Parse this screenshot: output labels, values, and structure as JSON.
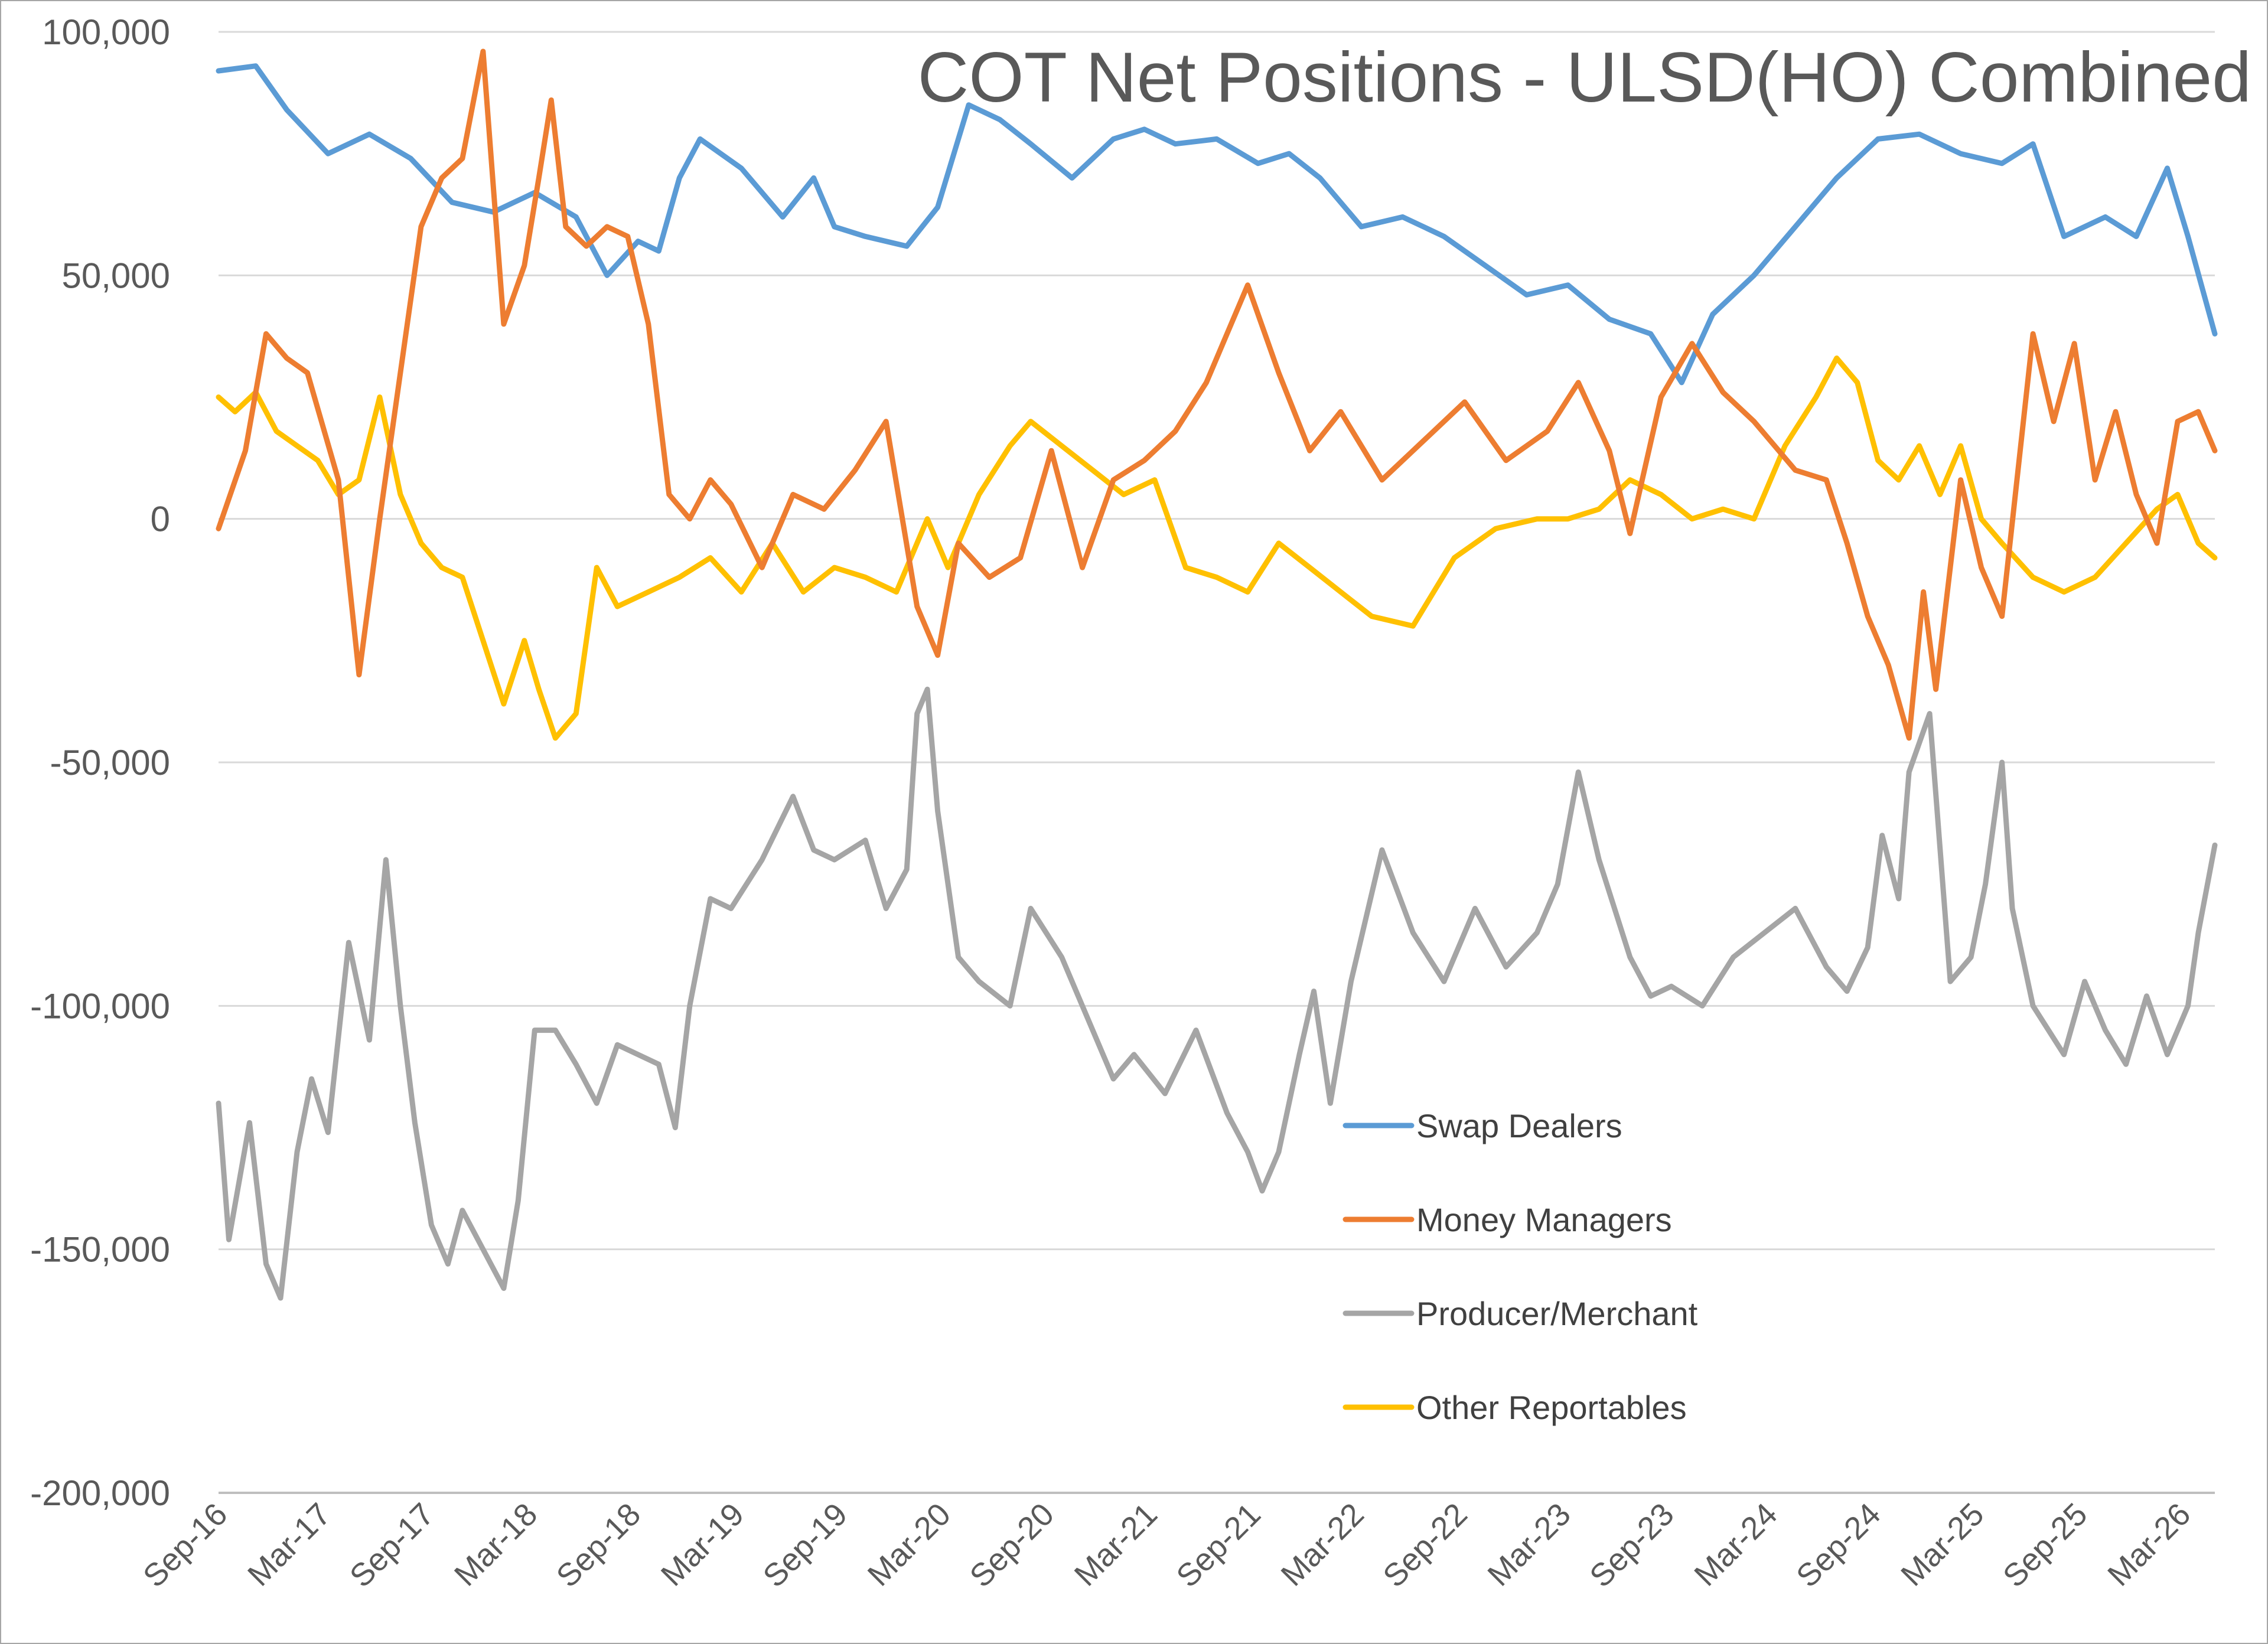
{
  "chart_data": {
    "type": "line",
    "title": "COT Net Positions - ULSD(HO) Combined",
    "xlabel": "",
    "ylabel": "",
    "ylim": [
      -200000,
      100000
    ],
    "yticks": [
      100000,
      50000,
      0,
      -50000,
      -100000,
      -150000,
      -200000
    ],
    "ytick_labels": [
      "100,000",
      "50,000",
      "0",
      "-50,000",
      "-100,000",
      "-150,000",
      "-200,000"
    ],
    "x_start": 2016.67,
    "x_end": 2026.33,
    "xtick_labels": [
      "Sep-16",
      "Mar-17",
      "Sep-17",
      "Mar-18",
      "Sep-18",
      "Mar-19",
      "Sep-19",
      "Mar-20",
      "Sep-20",
      "Mar-21",
      "Sep-21",
      "Mar-22",
      "Sep-22",
      "Mar-23",
      "Sep-23",
      "Mar-24",
      "Sep-24",
      "Mar-25",
      "Sep-25",
      "Mar-26"
    ],
    "xtick_values": [
      2016.67,
      2017.17,
      2017.67,
      2018.17,
      2018.67,
      2019.17,
      2019.67,
      2020.17,
      2020.67,
      2021.17,
      2021.67,
      2022.17,
      2022.67,
      2023.17,
      2023.67,
      2024.17,
      2024.67,
      2025.17,
      2025.67,
      2026.17
    ],
    "grid": true,
    "legend_position": "lower-center",
    "series": [
      {
        "name": "Swap Dealers",
        "color": "#5b9bd5",
        "x": [
          2016.67,
          2016.85,
          2017.0,
          2017.2,
          2017.4,
          2017.6,
          2017.8,
          2018.0,
          2018.2,
          2018.4,
          2018.55,
          2018.7,
          2018.8,
          2018.9,
          2019.0,
          2019.2,
          2019.4,
          2019.55,
          2019.65,
          2019.8,
          2020.0,
          2020.15,
          2020.3,
          2020.45,
          2020.6,
          2020.8,
          2021.0,
          2021.15,
          2021.3,
          2021.5,
          2021.7,
          2021.85,
          2022.0,
          2022.2,
          2022.4,
          2022.6,
          2022.8,
          2023.0,
          2023.2,
          2023.4,
          2023.6,
          2023.75,
          2023.9,
          2024.1,
          2024.3,
          2024.5,
          2024.7,
          2024.9,
          2025.1,
          2025.3,
          2025.45,
          2025.6,
          2025.8,
          2025.95,
          2026.1,
          2026.2,
          2026.33
        ],
        "values": [
          92000,
          93000,
          84000,
          75000,
          79000,
          74000,
          65000,
          63000,
          67000,
          62000,
          50000,
          57000,
          55000,
          70000,
          78000,
          72000,
          62000,
          70000,
          60000,
          58000,
          56000,
          64000,
          85000,
          82000,
          77000,
          70000,
          78000,
          80000,
          77000,
          78000,
          73000,
          75000,
          70000,
          60000,
          62000,
          58000,
          52000,
          46000,
          48000,
          41000,
          38000,
          28000,
          42000,
          50000,
          60000,
          70000,
          78000,
          79000,
          75000,
          73000,
          77000,
          58000,
          62000,
          58000,
          72000,
          58000,
          38000
        ]
      },
      {
        "name": "Money Managers",
        "color": "#ed7d31",
        "x": [
          2016.67,
          2016.8,
          2016.9,
          2017.0,
          2017.1,
          2017.25,
          2017.35,
          2017.45,
          2017.55,
          2017.65,
          2017.75,
          2017.85,
          2017.95,
          2018.05,
          2018.15,
          2018.22,
          2018.28,
          2018.35,
          2018.45,
          2018.55,
          2018.65,
          2018.75,
          2018.85,
          2018.95,
          2019.05,
          2019.15,
          2019.3,
          2019.45,
          2019.6,
          2019.75,
          2019.9,
          2020.05,
          2020.15,
          2020.25,
          2020.4,
          2020.55,
          2020.7,
          2020.85,
          2021.0,
          2021.15,
          2021.3,
          2021.45,
          2021.55,
          2021.65,
          2021.8,
          2021.95,
          2022.1,
          2022.3,
          2022.5,
          2022.7,
          2022.9,
          2023.1,
          2023.25,
          2023.4,
          2023.5,
          2023.65,
          2023.8,
          2023.95,
          2024.1,
          2024.3,
          2024.45,
          2024.55,
          2024.65,
          2024.75,
          2024.85,
          2024.92,
          2024.98,
          2025.1,
          2025.2,
          2025.3,
          2025.45,
          2025.55,
          2025.65,
          2025.75,
          2025.85,
          2025.95,
          2026.05,
          2026.15,
          2026.25,
          2026.33
        ],
        "values": [
          -2000,
          14000,
          38000,
          33000,
          30000,
          8000,
          -32000,
          0,
          30000,
          60000,
          70000,
          74000,
          96000,
          40000,
          52000,
          70000,
          86000,
          60000,
          56000,
          60000,
          58000,
          40000,
          5000,
          0,
          8000,
          3000,
          -10000,
          5000,
          2000,
          10000,
          20000,
          -18000,
          -28000,
          -5000,
          -12000,
          -8000,
          14000,
          -10000,
          8000,
          12000,
          18000,
          28000,
          38000,
          48000,
          30000,
          14000,
          22000,
          8000,
          16000,
          24000,
          12000,
          18000,
          28000,
          14000,
          -3000,
          25000,
          36000,
          26000,
          20000,
          10000,
          8000,
          -5000,
          -20000,
          -30000,
          -45000,
          -15000,
          -35000,
          8000,
          -10000,
          -20000,
          38000,
          20000,
          36000,
          8000,
          22000,
          5000,
          -5000,
          20000,
          22000,
          14000
        ]
      },
      {
        "name": "Producer/Merchant",
        "color": "#a5a5a5",
        "x": [
          2016.67,
          2016.72,
          2016.82,
          2016.9,
          2016.97,
          2017.05,
          2017.12,
          2017.2,
          2017.3,
          2017.4,
          2017.48,
          2017.55,
          2017.62,
          2017.7,
          2017.78,
          2017.85,
          2017.95,
          2018.05,
          2018.12,
          2018.2,
          2018.3,
          2018.4,
          2018.5,
          2018.6,
          2018.7,
          2018.8,
          2018.88,
          2018.95,
          2019.05,
          2019.15,
          2019.3,
          2019.45,
          2019.55,
          2019.65,
          2019.8,
          2019.9,
          2020.0,
          2020.05,
          2020.1,
          2020.15,
          2020.25,
          2020.35,
          2020.5,
          2020.6,
          2020.75,
          2020.9,
          2021.0,
          2021.1,
          2021.25,
          2021.4,
          2021.55,
          2021.65,
          2021.72,
          2021.8,
          2021.9,
          2021.97,
          2022.05,
          2022.15,
          2022.3,
          2022.45,
          2022.6,
          2022.75,
          2022.9,
          2023.05,
          2023.15,
          2023.25,
          2023.35,
          2023.5,
          2023.6,
          2023.7,
          2023.85,
          2024.0,
          2024.15,
          2024.3,
          2024.45,
          2024.55,
          2024.65,
          2024.72,
          2024.8,
          2024.85,
          2024.95,
          2025.05,
          2025.15,
          2025.22,
          2025.3,
          2025.35,
          2025.45,
          2025.6,
          2025.7,
          2025.8,
          2025.9,
          2026.0,
          2026.1,
          2026.2,
          2026.25,
          2026.33
        ],
        "values": [
          -120000,
          -148000,
          -124000,
          -153000,
          -160000,
          -130000,
          -115000,
          -126000,
          -87000,
          -107000,
          -70000,
          -100000,
          -124000,
          -145000,
          -153000,
          -142000,
          -150000,
          -158000,
          -140000,
          -105000,
          -105000,
          -112000,
          -120000,
          -108000,
          -110000,
          -112000,
          -125000,
          -100000,
          -78000,
          -80000,
          -70000,
          -57000,
          -68000,
          -70000,
          -66000,
          -80000,
          -72000,
          -40000,
          -35000,
          -60000,
          -90000,
          -95000,
          -100000,
          -80000,
          -90000,
          -105000,
          -115000,
          -110000,
          -118000,
          -105000,
          -122000,
          -130000,
          -138000,
          -130000,
          -110000,
          -97000,
          -120000,
          -95000,
          -68000,
          -85000,
          -95000,
          -80000,
          -92000,
          -85000,
          -75000,
          -52000,
          -70000,
          -90000,
          -98000,
          -96000,
          -100000,
          -90000,
          -85000,
          -80000,
          -92000,
          -97000,
          -88000,
          -65000,
          -78000,
          -52000,
          -40000,
          -95000,
          -90000,
          -75000,
          -50000,
          -80000,
          -100000,
          -110000,
          -95000,
          -105000,
          -112000,
          -98000,
          -110000,
          -100000,
          -85000,
          -67000
        ]
      },
      {
        "name": "Other Reportables",
        "color": "#ffc000",
        "x": [
          2016.67,
          2016.75,
          2016.85,
          2016.95,
          2017.05,
          2017.15,
          2017.25,
          2017.35,
          2017.45,
          2017.55,
          2017.65,
          2017.75,
          2017.85,
          2017.95,
          2018.05,
          2018.15,
          2018.22,
          2018.3,
          2018.4,
          2018.5,
          2018.6,
          2018.75,
          2018.9,
          2019.05,
          2019.2,
          2019.35,
          2019.5,
          2019.65,
          2019.8,
          2019.95,
          2020.1,
          2020.2,
          2020.35,
          2020.5,
          2020.6,
          2020.75,
          2020.9,
          2021.05,
          2021.2,
          2021.35,
          2021.5,
          2021.65,
          2021.8,
          2021.95,
          2022.1,
          2022.25,
          2022.45,
          2022.65,
          2022.85,
          2023.05,
          2023.2,
          2023.35,
          2023.5,
          2023.65,
          2023.8,
          2023.95,
          2024.1,
          2024.25,
          2024.4,
          2024.5,
          2024.6,
          2024.7,
          2024.8,
          2024.9,
          2025.0,
          2025.1,
          2025.2,
          2025.3,
          2025.45,
          2025.6,
          2025.75,
          2025.9,
          2026.05,
          2026.15,
          2026.25,
          2026.33
        ],
        "values": [
          25000,
          22000,
          26000,
          18000,
          15000,
          12000,
          5000,
          8000,
          25000,
          5000,
          -5000,
          -10000,
          -12000,
          -25000,
          -38000,
          -25000,
          -35000,
          -45000,
          -40000,
          -10000,
          -18000,
          -15000,
          -12000,
          -8000,
          -15000,
          -5000,
          -15000,
          -10000,
          -12000,
          -15000,
          0,
          -10000,
          5000,
          15000,
          20000,
          15000,
          10000,
          5000,
          8000,
          -10000,
          -12000,
          -15000,
          -5000,
          -10000,
          -15000,
          -20000,
          -22000,
          -8000,
          -2000,
          0,
          0,
          2000,
          8000,
          5000,
          0,
          2000,
          0,
          15000,
          25000,
          33000,
          28000,
          12000,
          8000,
          15000,
          5000,
          15000,
          0,
          -5000,
          -12000,
          -15000,
          -12000,
          -5000,
          2000,
          5000,
          -5000,
          -8000
        ]
      }
    ]
  }
}
